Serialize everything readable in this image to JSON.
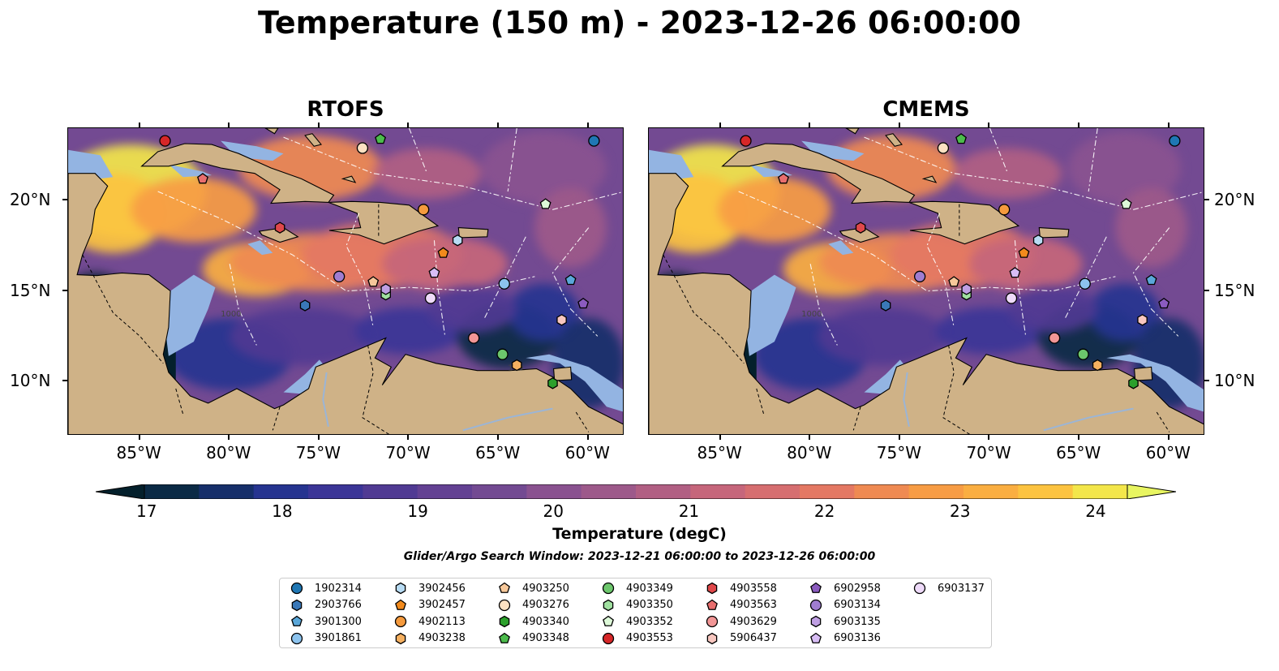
{
  "title": "Temperature (150 m) - 2023-12-26 06:00:00",
  "panels": [
    {
      "id": "rtofs",
      "title": "RTOFS"
    },
    {
      "id": "cmems",
      "title": "CMEMS"
    }
  ],
  "colors": {
    "land": "#cfb287",
    "shelf": "#93b4e2",
    "river": "#9bb5d6",
    "colormap": [
      "#04202c",
      "#0b2a45",
      "#162f6a",
      "#263490",
      "#3b3597",
      "#503a93",
      "#634193",
      "#734a92",
      "#8a5290",
      "#9d598a",
      "#b15f83",
      "#c6667b",
      "#d66e70",
      "#e47863",
      "#ef8a52",
      "#f79c44",
      "#faae41",
      "#fcc340",
      "#f3e64a",
      "#e8f561"
    ],
    "max_extend": "#e8f561"
  },
  "chart_data": [
    {
      "type": "heatmap",
      "panel": "RTOFS",
      "title": "RTOFS",
      "x_ticks": [
        "85°W",
        "80°W",
        "75°W",
        "70°W",
        "65°W",
        "60°W"
      ],
      "y_ticks": [
        "10°N",
        "15°N",
        "20°N"
      ],
      "xlim": [
        -89,
        -58
      ],
      "ylim": [
        7,
        24
      ],
      "contour_labels": [
        "1000",
        "100"
      ],
      "field": "temperature at 150 m"
    },
    {
      "type": "heatmap",
      "panel": "CMEMS",
      "title": "CMEMS",
      "x_ticks": [
        "85°W",
        "80°W",
        "75°W",
        "70°W",
        "65°W",
        "60°W"
      ],
      "y_ticks": [
        "10°N",
        "15°N",
        "20°N"
      ],
      "xlim": [
        -89,
        -58
      ],
      "ylim": [
        7,
        24
      ],
      "contour_labels": [
        "1000"
      ],
      "field": "temperature at 150 m"
    }
  ],
  "colorbar": {
    "label": "Temperature (degC)",
    "ticks": [
      "17",
      "18",
      "19",
      "20",
      "21",
      "22",
      "23",
      "24"
    ],
    "range": [
      16.75,
      24.5
    ],
    "extend": "both"
  },
  "search_window": "Glider/Argo Search Window: 2023-12-21 06:00:00 to 2023-12-26 06:00:00",
  "floats": [
    {
      "id": "1902314",
      "marker": "circle",
      "color": "#1f77b4",
      "lon": -59.7,
      "lat": 23.3
    },
    {
      "id": "2903766",
      "marker": "hexagon",
      "color": "#3a78b8",
      "lon": -75.8,
      "lat": 14.2
    },
    {
      "id": "3901300",
      "marker": "pentagon",
      "color": "#5aa7d9",
      "lon": -61.0,
      "lat": 15.6
    },
    {
      "id": "3901861",
      "marker": "circle",
      "color": "#8cc3ee",
      "lon": -64.7,
      "lat": 15.4
    },
    {
      "id": "3902456",
      "marker": "hexagon",
      "color": "#b8dcf4",
      "lon": -67.3,
      "lat": 17.8
    },
    {
      "id": "3902457",
      "marker": "pentagon",
      "color": "#f28a1c",
      "lon": -68.1,
      "lat": 17.1
    },
    {
      "id": "4902113",
      "marker": "circle",
      "color": "#f59a3d",
      "lon": -69.2,
      "lat": 19.5
    },
    {
      "id": "4903238",
      "marker": "hexagon",
      "color": "#f5b060",
      "lon": -64.0,
      "lat": 10.9
    },
    {
      "id": "4903250",
      "marker": "pentagon",
      "color": "#f7c89a",
      "lon": -72.0,
      "lat": 15.5
    },
    {
      "id": "4903276",
      "marker": "circle",
      "color": "#fde1c2",
      "lon": -72.6,
      "lat": 22.9
    },
    {
      "id": "4903340",
      "marker": "hexagon",
      "color": "#2ca02c",
      "lon": -62.0,
      "lat": 9.9
    },
    {
      "id": "4903348",
      "marker": "pentagon",
      "color": "#4cbb4c",
      "lon": -71.6,
      "lat": 23.4
    },
    {
      "id": "4903349",
      "marker": "circle",
      "color": "#6cc66c",
      "lon": -64.8,
      "lat": 11.5
    },
    {
      "id": "4903350",
      "marker": "hexagon",
      "color": "#a0e0a0",
      "lon": -71.3,
      "lat": 14.8
    },
    {
      "id": "4903352",
      "marker": "pentagon",
      "color": "#ddf9d8",
      "lon": -62.4,
      "lat": 19.8
    },
    {
      "id": "4903553",
      "marker": "circle",
      "color": "#d62728",
      "lon": -83.6,
      "lat": 23.3
    },
    {
      "id": "4903558",
      "marker": "hexagon",
      "color": "#e0484a",
      "lon": -77.2,
      "lat": 18.5
    },
    {
      "id": "4903563",
      "marker": "pentagon",
      "color": "#e86e6e",
      "lon": -81.5,
      "lat": 21.2
    },
    {
      "id": "4903629",
      "marker": "circle",
      "color": "#f29696",
      "lon": -66.4,
      "lat": 12.4
    },
    {
      "id": "5906437",
      "marker": "hexagon",
      "color": "#f8c7c0",
      "lon": -61.5,
      "lat": 13.4
    },
    {
      "id": "6902958",
      "marker": "pentagon",
      "color": "#8b5bbf",
      "lon": -60.3,
      "lat": 14.3
    },
    {
      "id": "6903134",
      "marker": "circle",
      "color": "#a07dd0",
      "lon": -73.9,
      "lat": 15.8
    },
    {
      "id": "6903135",
      "marker": "hexagon",
      "color": "#bf9fe3",
      "lon": -71.3,
      "lat": 15.1
    },
    {
      "id": "6903136",
      "marker": "pentagon",
      "color": "#d8bdf5",
      "lon": -68.6,
      "lat": 16.0
    },
    {
      "id": "6903137",
      "marker": "circle",
      "color": "#eedaf9",
      "lon": -68.8,
      "lat": 14.6
    }
  ]
}
